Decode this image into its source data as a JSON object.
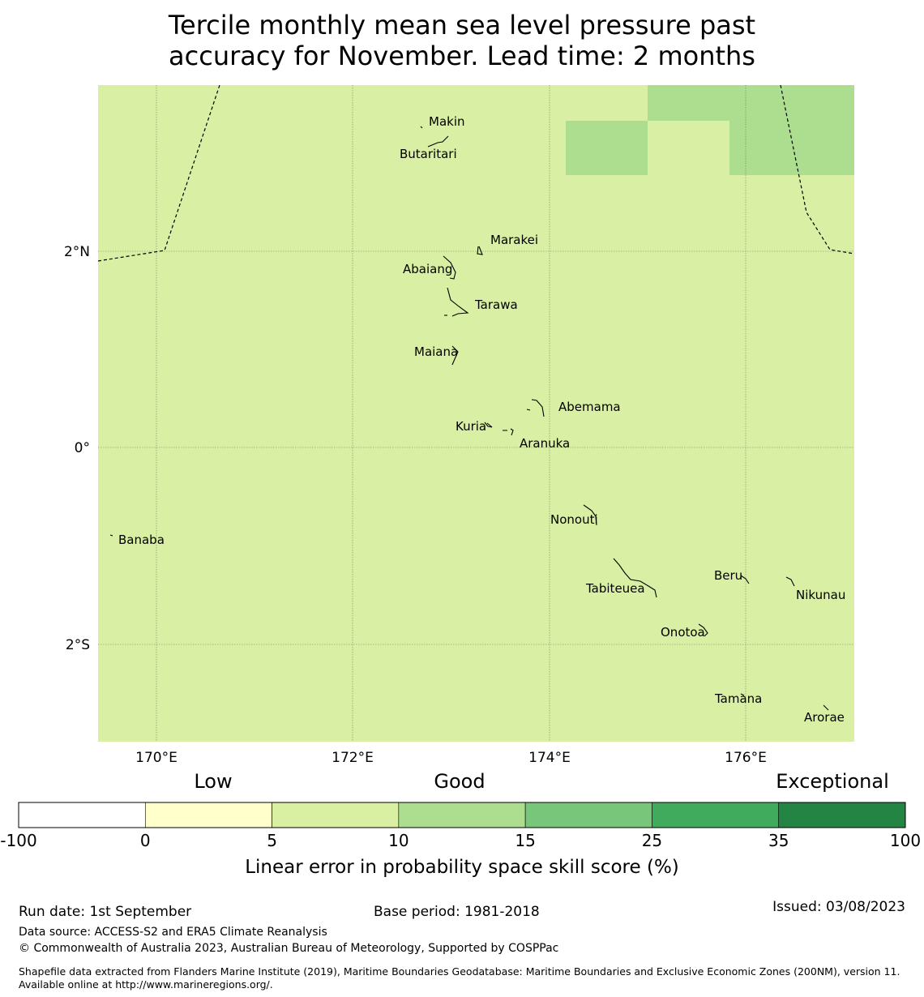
{
  "title": {
    "line1": "Tercile monthly mean sea level pressure past",
    "line2": "accuracy for November. Lead time: 2 months"
  },
  "map": {
    "fill_color": "#d9efa3",
    "higher_skill_color": "#addd8e",
    "lon_ticks": [
      "170°E",
      "172°E",
      "174°E",
      "176°E"
    ],
    "lat_ticks": [
      "2°N",
      "0°",
      "2°S"
    ],
    "islands": [
      "Makin",
      "Butaritari",
      "Marakei",
      "Abaiang",
      "Tarawa",
      "Maiana",
      "Abemama",
      "Kuria",
      "Aranuka",
      "Nonouti",
      "Banaba",
      "Beru",
      "Tabiteuea",
      "Nikunau",
      "Onotoa",
      "Tamana",
      "Arorae"
    ]
  },
  "legend": {
    "categories": [
      "Low",
      "Good",
      "Exceptional"
    ],
    "ticks": [
      "-100",
      "0",
      "5",
      "10",
      "15",
      "25",
      "35",
      "100"
    ],
    "colors": [
      "#ffffff",
      "#ffffcc",
      "#d9f0a3",
      "#addd8e",
      "#78c679",
      "#41ab5d",
      "#238443"
    ],
    "label": "Linear error in probability space skill score (%)"
  },
  "footer": {
    "run_date": "Run date: 1st September",
    "base_period": "Base period: 1981-2018",
    "issued": "Issued: 03/08/2023",
    "data_source": "Data source: ACCESS-S2 and ERA5 Climate Reanalysis",
    "copyright": "© Commonwealth of Australia 2023, Australian Bureau of Meteorology, Supported by COSPPac",
    "shapefile": "Shapefile data extracted from Flanders Marine Institute (2019), Maritime Boundaries Geodatabase: Maritime Boundaries and Exclusive Economic Zones (200NM), version 11. Available online at http://www.marineregions.org/."
  }
}
